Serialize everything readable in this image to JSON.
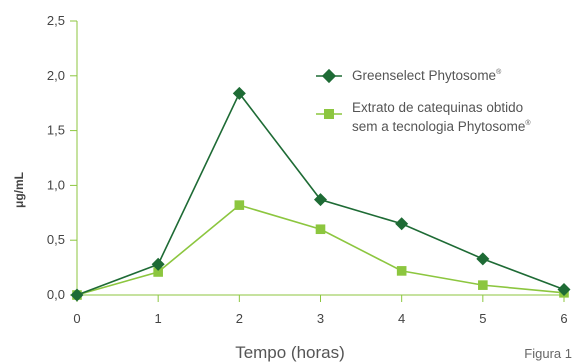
{
  "chart_data": {
    "type": "line",
    "x": [
      0,
      1,
      2,
      3,
      4,
      5,
      6
    ],
    "x_tick_labels": [
      "0",
      "1",
      "2",
      "3",
      "4",
      "5",
      "6"
    ],
    "y_tick_labels": [
      "0,0",
      "0,5",
      "1,0",
      "1,5",
      "2,0",
      "2,5"
    ],
    "y_ticks": [
      0,
      0.5,
      1.0,
      1.5,
      2.0,
      2.5
    ],
    "xlim": [
      0,
      6
    ],
    "ylim": [
      0,
      2.5
    ],
    "xlabel": "Tempo (horas)",
    "ylabel": "μg/mL",
    "grid": false,
    "legend_position": "top-right",
    "series": [
      {
        "name": "Greenselect Phytosome",
        "name_sup": "®",
        "color": "#1e6b35",
        "marker": "diamond",
        "values": [
          0.0,
          0.28,
          1.84,
          0.87,
          0.65,
          0.33,
          0.05
        ]
      },
      {
        "name_lines": [
          "Extrato de catequinas obtido",
          "sem a tecnologia Phytosome"
        ],
        "name_sup": "®",
        "color": "#8cc63f",
        "marker": "square",
        "values": [
          0.0,
          0.21,
          0.82,
          0.6,
          0.22,
          0.09,
          0.02
        ]
      }
    ]
  },
  "figure_label": "Figura 1",
  "colors": {
    "axis": "#8cc63f",
    "text": "#444444"
  }
}
